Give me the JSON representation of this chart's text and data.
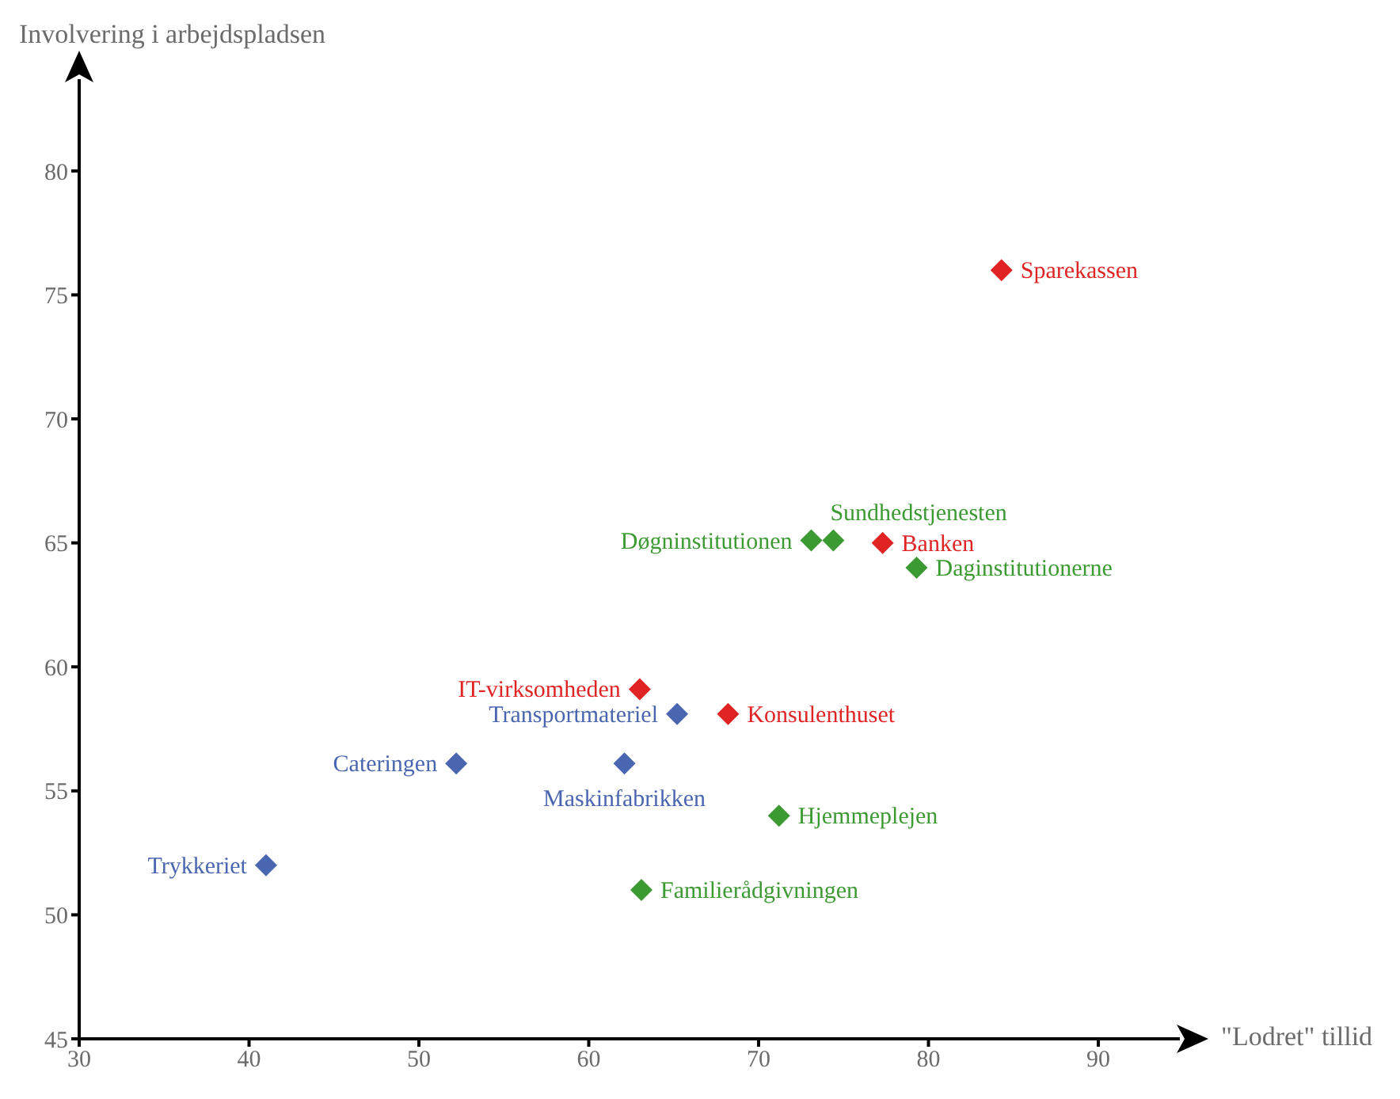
{
  "chart_data": {
    "type": "scatter",
    "xlabel": "\"Lodret\" tillid",
    "ylabel": "Involvering i arbejdspladsen",
    "xlim": [
      30,
      94.8
    ],
    "ylim": [
      45,
      83.7
    ],
    "xticks": [
      30,
      40,
      50,
      60,
      70,
      80,
      90
    ],
    "yticks": [
      45,
      50,
      55,
      60,
      65,
      70,
      75,
      80
    ],
    "marker": "diamond",
    "series": [
      {
        "color": "#e02424",
        "x": [
          84.3,
          77.3,
          63.0,
          68.2
        ],
        "values": [
          76.0,
          65.0,
          59.1,
          58.1
        ]
      },
      {
        "color": "#4a66b0",
        "x": [
          65.2,
          52.2,
          62.1,
          41.0
        ],
        "values": [
          58.1,
          56.1,
          56.1,
          52.0
        ]
      },
      {
        "color": "#3c9a32",
        "x": [
          79.3,
          74.4,
          73.1,
          71.2,
          63.1
        ],
        "values": [
          64.0,
          65.1,
          65.1,
          54.0,
          51.0
        ]
      }
    ],
    "annotations": [
      {
        "text": "Sparekassen",
        "x": 84.3,
        "y": 76.0
      },
      {
        "text": "Banken",
        "x": 77.3,
        "y": 65.0
      },
      {
        "text": "Daginstitutionerne",
        "x": 79.3,
        "y": 64.0
      },
      {
        "text": "Sundhedstjenesten",
        "x": 74.4,
        "y": 65.1
      },
      {
        "text": "Døgninstitutionen",
        "x": 73.1,
        "y": 65.1
      },
      {
        "text": "IT-virksomheden",
        "x": 63.0,
        "y": 59.1
      },
      {
        "text": "Transportmateriel",
        "x": 65.2,
        "y": 58.1
      },
      {
        "text": "Konsulenthuset",
        "x": 68.2,
        "y": 58.1
      },
      {
        "text": "Cateringen",
        "x": 52.2,
        "y": 56.1
      },
      {
        "text": "Maskinfabrikken",
        "x": 62.1,
        "y": 56.1
      },
      {
        "text": "Hjemmeplejen",
        "x": 71.2,
        "y": 54.0
      },
      {
        "text": "Trykkeriet",
        "x": 41.0,
        "y": 52.0
      },
      {
        "text": "Familierådgivningen",
        "x": 63.1,
        "y": 51.0
      }
    ]
  }
}
